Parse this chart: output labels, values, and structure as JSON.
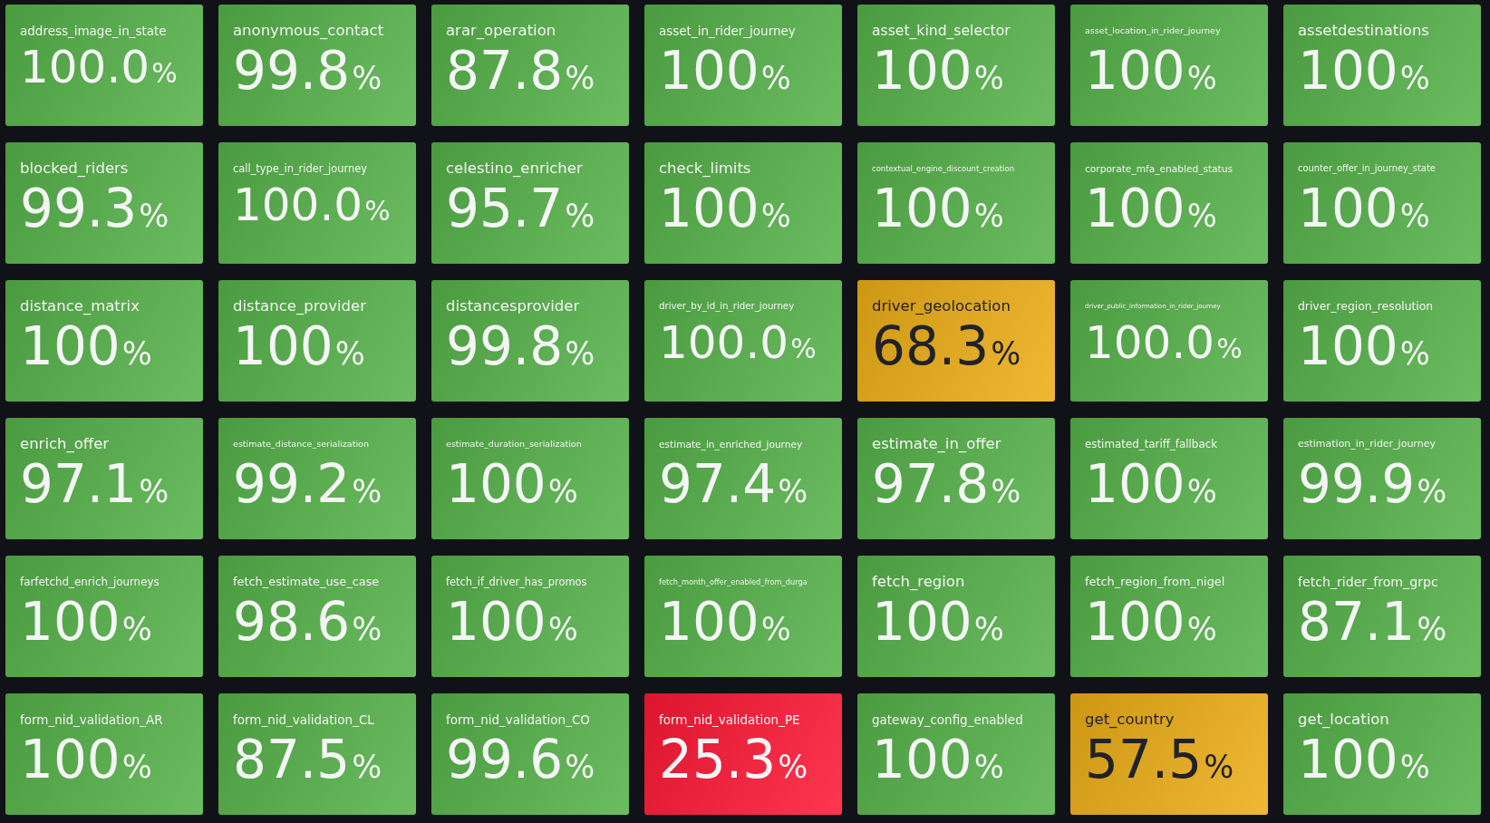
{
  "chart_data": {
    "type": "other",
    "categories": [
      "address_image_in_state",
      "anonymous_contact",
      "arar_operation",
      "asset_in_rider_journey",
      "asset_kind_selector",
      "asset_location_in_rider_journey",
      "assetdestinations",
      "blocked_riders",
      "call_type_in_rider_journey",
      "celestino_enricher",
      "check_limits",
      "contextual_engine_discount_creation",
      "corporate_mfa_enabled_status",
      "counter_offer_in_journey_state",
      "distance_matrix",
      "distance_provider",
      "distancesprovider",
      "driver_by_id_in_rider_journey",
      "driver_geolocation",
      "driver_public_information_in_rider_journey",
      "driver_region_resolution",
      "enrich_offer",
      "estimate_distance_serialization",
      "estimate_duration_serialization",
      "estimate_in_enriched_journey",
      "estimate_in_offer",
      "estimated_tariff_fallback",
      "estimation_in_rider_journey",
      "farfetchd_enrich_journeys",
      "fetch_estimate_use_case",
      "fetch_if_driver_has_promos",
      "fetch_month_offer_enabled_from_durga",
      "fetch_region",
      "fetch_region_from_nigel",
      "fetch_rider_from_grpc",
      "form_nid_validation_AR",
      "form_nid_validation_CL",
      "form_nid_validation_CO",
      "form_nid_validation_PE",
      "gateway_config_enabled",
      "get_country",
      "get_location"
    ],
    "values": [
      100.0,
      99.8,
      87.8,
      100,
      100,
      100,
      100,
      99.3,
      100.0,
      95.7,
      100,
      100,
      100,
      100,
      100,
      100,
      99.8,
      100.0,
      68.3,
      100.0,
      100,
      97.1,
      99.2,
      100,
      97.4,
      97.8,
      100,
      99.9,
      100,
      98.6,
      100,
      100,
      100,
      100,
      87.1,
      100,
      87.5,
      99.6,
      25.3,
      100,
      57.5,
      100
    ],
    "value_labels": [
      "100.0%",
      "99.8%",
      "87.8%",
      "100%",
      "100%",
      "100%",
      "100%",
      "99.3%",
      "100.0%",
      "95.7%",
      "100%",
      "100%",
      "100%",
      "100%",
      "100%",
      "100%",
      "99.8%",
      "100.0%",
      "68.3%",
      "100.0%",
      "100%",
      "97.1%",
      "99.2%",
      "100%",
      "97.4%",
      "97.8%",
      "100%",
      "99.9%",
      "100%",
      "98.6%",
      "100%",
      "100%",
      "100%",
      "100%",
      "87.1%",
      "100%",
      "87.5%",
      "99.6%",
      "25.3%",
      "100%",
      "57.5%",
      "100%"
    ],
    "colors": [
      "#56a64b",
      "#56a64b",
      "#56a64b",
      "#56a64b",
      "#56a64b",
      "#56a64b",
      "#56a64b",
      "#56a64b",
      "#56a64b",
      "#56a64b",
      "#56a64b",
      "#56a64b",
      "#56a64b",
      "#56a64b",
      "#56a64b",
      "#56a64b",
      "#56a64b",
      "#56a64b",
      "#d9a21f",
      "#56a64b",
      "#56a64b",
      "#56a64b",
      "#56a64b",
      "#56a64b",
      "#56a64b",
      "#56a64b",
      "#56a64b",
      "#56a64b",
      "#56a64b",
      "#56a64b",
      "#56a64b",
      "#56a64b",
      "#56a64b",
      "#56a64b",
      "#56a64b",
      "#56a64b",
      "#56a64b",
      "#56a64b",
      "#e8203a",
      "#56a64b",
      "#d9a21f",
      "#56a64b"
    ]
  }
}
